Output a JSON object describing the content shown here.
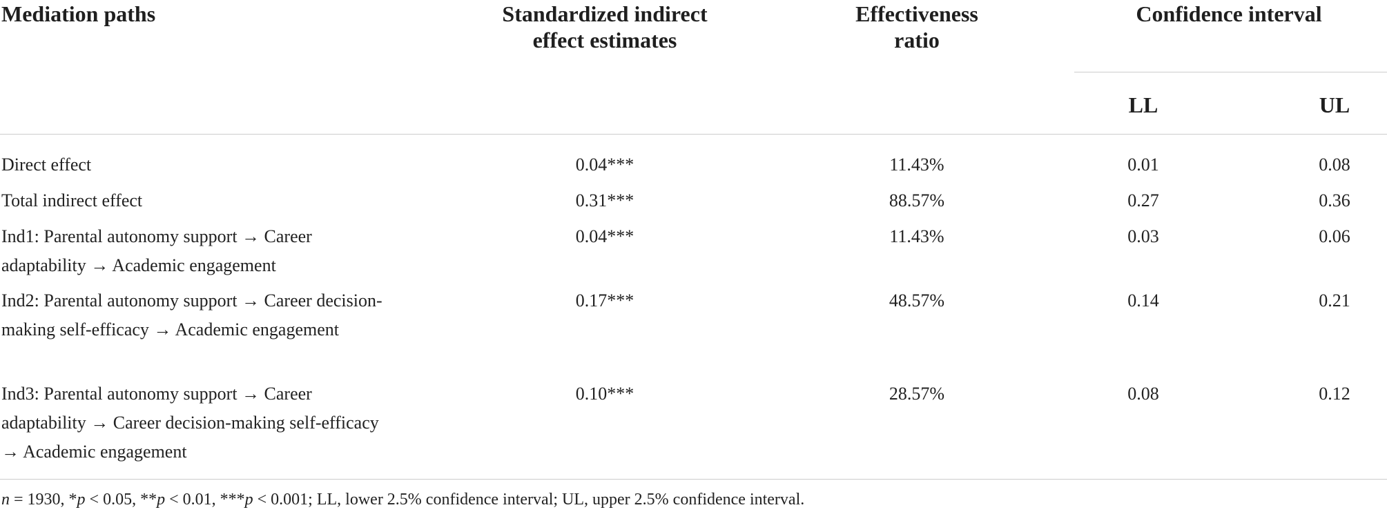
{
  "table": {
    "headers": {
      "mediation_paths": "Mediation paths",
      "estimates_line1": "Standardized indirect",
      "estimates_line2": "effect estimates",
      "ratio_line1": "Effectiveness",
      "ratio_line2": "ratio",
      "ci": "Confidence interval",
      "ll": "LL",
      "ul": "UL"
    },
    "rows": [
      {
        "path": "Direct effect",
        "estimate": "0.04***",
        "ratio": "11.43%",
        "ll": "0.01",
        "ul": "0.08"
      },
      {
        "path": "Total indirect effect",
        "estimate": "0.31***",
        "ratio": "88.57%",
        "ll": "0.27",
        "ul": "0.36"
      },
      {
        "path": "Ind1: Parental autonomy support → Career adaptability → Academic engagement",
        "estimate": "0.04***",
        "ratio": "11.43%",
        "ll": "0.03",
        "ul": "0.06"
      },
      {
        "path": "Ind2: Parental autonomy support → Career decision-making self-efficacy → Academic engagement",
        "estimate": "0.17***",
        "ratio": "48.57%",
        "ll": "0.14",
        "ul": "0.21"
      },
      {
        "path": "Ind3: Parental autonomy support → Career adaptability → Career decision-making self-efficacy → Academic engagement",
        "estimate": "0.10***",
        "ratio": "28.57%",
        "ll": "0.08",
        "ul": "0.12"
      }
    ],
    "footnote": {
      "n_symbol": "n",
      "n_value": " = 1930, *",
      "p1": "p",
      "t1": " < 0.05, **",
      "p2": "p",
      "t2": " < 0.01, ***",
      "p3": "p",
      "t3": " < 0.001; LL, lower 2.5% confidence interval; UL, upper 2.5% confidence interval."
    }
  }
}
